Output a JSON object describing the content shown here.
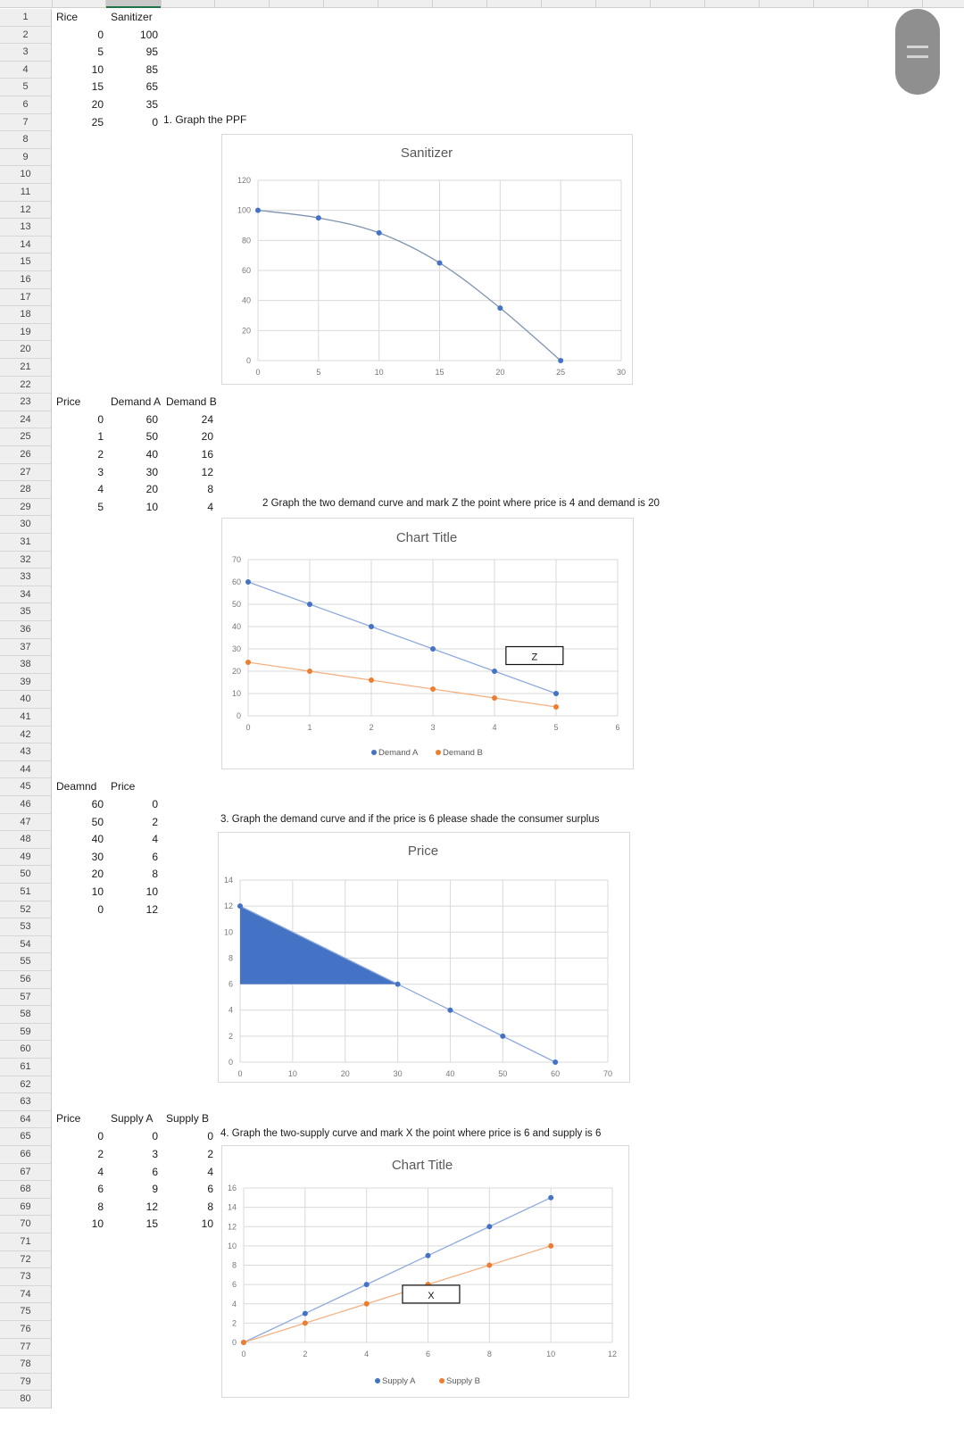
{
  "sheet": {
    "rows": [
      "1",
      "2",
      "3",
      "4",
      "5",
      "6",
      "7",
      "8",
      "9",
      "10",
      "11",
      "12",
      "13",
      "14",
      "15",
      "16",
      "17",
      "18",
      "19",
      "20",
      "21",
      "22",
      "23",
      "24",
      "25",
      "26",
      "27",
      "28",
      "29",
      "30",
      "31",
      "32",
      "33",
      "34",
      "35",
      "36",
      "37",
      "38",
      "39",
      "40",
      "41",
      "42",
      "43",
      "44",
      "45",
      "46",
      "47",
      "48",
      "49",
      "50",
      "51",
      "52",
      "53",
      "54",
      "55",
      "56",
      "57",
      "58",
      "59",
      "60",
      "61",
      "62",
      "63",
      "64",
      "65",
      "66",
      "67",
      "68",
      "69",
      "70",
      "71",
      "72",
      "73",
      "74",
      "75",
      "76",
      "77",
      "78",
      "79",
      "80"
    ]
  },
  "table1": {
    "headers": [
      "Rice",
      "Sanitizer"
    ],
    "rows": [
      [
        "0",
        "100"
      ],
      [
        "5",
        "95"
      ],
      [
        "10",
        "85"
      ],
      [
        "15",
        "65"
      ],
      [
        "20",
        "35"
      ],
      [
        "25",
        "0"
      ]
    ],
    "instruction": "1. Graph the PPF"
  },
  "table2": {
    "headers": [
      "Price",
      "Demand A",
      "Demand B"
    ],
    "rows": [
      [
        "0",
        "60",
        "24"
      ],
      [
        "1",
        "50",
        "20"
      ],
      [
        "2",
        "40",
        "16"
      ],
      [
        "3",
        "30",
        "12"
      ],
      [
        "4",
        "20",
        "8"
      ],
      [
        "5",
        "10",
        "4"
      ]
    ],
    "instruction": "2  Graph the two demand curve and mark Z the point where price is 4 and demand is 20"
  },
  "table3": {
    "headers": [
      "Deamnd",
      "Price"
    ],
    "rows": [
      [
        "60",
        "0"
      ],
      [
        "50",
        "2"
      ],
      [
        "40",
        "4"
      ],
      [
        "30",
        "6"
      ],
      [
        "20",
        "8"
      ],
      [
        "10",
        "10"
      ],
      [
        "0",
        "12"
      ]
    ],
    "instruction": "3. Graph the demand curve and if the price is 6 please shade the consumer surplus"
  },
  "table4": {
    "headers": [
      "Price",
      "Supply A",
      "Supply B"
    ],
    "rows": [
      [
        "0",
        "0",
        "0"
      ],
      [
        "2",
        "3",
        "2"
      ],
      [
        "4",
        "6",
        "4"
      ],
      [
        "6",
        "9",
        "6"
      ],
      [
        "8",
        "12",
        "8"
      ],
      [
        "10",
        "15",
        "10"
      ]
    ],
    "instruction": "4. Graph the two-supply curve and mark X the point where price is 6 and supply is 6"
  },
  "colors": {
    "blue": "#4472c4",
    "orange": "#ed7d31",
    "line_blue": "#8faadc",
    "line_orange": "#f4b183",
    "shade": "#4472c4",
    "grid": "#d9d9d9"
  },
  "chart_data": [
    {
      "type": "scatter",
      "title": "Sanitizer",
      "xlabel": "",
      "ylabel": "",
      "x": [
        0,
        5,
        10,
        15,
        20,
        25
      ],
      "series": [
        {
          "name": "Sanitizer",
          "values": [
            100,
            95,
            85,
            65,
            35,
            0
          ]
        }
      ],
      "xlim": [
        0,
        30
      ],
      "ylim": [
        0,
        120
      ],
      "xticks": [
        "0",
        "5",
        "10",
        "15",
        "20",
        "25",
        "30"
      ],
      "yticks": [
        "0",
        "20",
        "40",
        "60",
        "80",
        "100",
        "120"
      ],
      "smooth": true,
      "grid": true,
      "legend": "none"
    },
    {
      "type": "line",
      "title": "Chart Title",
      "x": [
        0,
        1,
        2,
        3,
        4,
        5
      ],
      "series": [
        {
          "name": "Demand A",
          "values": [
            60,
            50,
            40,
            30,
            20,
            10
          ]
        },
        {
          "name": "Demand B",
          "values": [
            24,
            20,
            16,
            12,
            8,
            4
          ]
        }
      ],
      "xlim": [
        0,
        6
      ],
      "ylim": [
        0,
        70
      ],
      "xticks": [
        "0",
        "1",
        "2",
        "3",
        "4",
        "5",
        "6"
      ],
      "yticks": [
        "0",
        "10",
        "20",
        "30",
        "40",
        "50",
        "60",
        "70"
      ],
      "annotations": [
        {
          "text": "Z",
          "x": 4.65,
          "y": 27
        }
      ],
      "grid": true,
      "legend": "bottom"
    },
    {
      "type": "line",
      "title": "Price",
      "x": [
        0,
        30,
        40,
        50,
        60
      ],
      "series": [
        {
          "name": "Price",
          "values": [
            12,
            6,
            4,
            2,
            0
          ]
        }
      ],
      "xlim": [
        0,
        70
      ],
      "ylim": [
        0,
        14
      ],
      "xticks": [
        "0",
        "10",
        "20",
        "30",
        "40",
        "50",
        "60",
        "70"
      ],
      "yticks": [
        "0",
        "2",
        "4",
        "6",
        "8",
        "10",
        "12",
        "14"
      ],
      "shaded_region": {
        "label": "consumer surplus",
        "points": [
          [
            0,
            12
          ],
          [
            30,
            6
          ],
          [
            0,
            6
          ]
        ]
      },
      "grid": true,
      "legend": "none"
    },
    {
      "type": "line",
      "title": "Chart Title",
      "x": [
        0,
        2,
        4,
        6,
        8,
        10
      ],
      "series": [
        {
          "name": "Supply A",
          "values": [
            0,
            3,
            6,
            9,
            12,
            15
          ]
        },
        {
          "name": "Supply B",
          "values": [
            0,
            2,
            4,
            6,
            8,
            10
          ]
        }
      ],
      "xlim": [
        0,
        12
      ],
      "ylim": [
        0,
        16
      ],
      "xticks": [
        "0",
        "2",
        "4",
        "6",
        "8",
        "10",
        "12"
      ],
      "yticks": [
        "0",
        "2",
        "4",
        "6",
        "8",
        "10",
        "12",
        "14",
        "16"
      ],
      "annotations": [
        {
          "text": "X",
          "x": 6.1,
          "y": 5
        }
      ],
      "grid": true,
      "legend": "bottom"
    }
  ]
}
